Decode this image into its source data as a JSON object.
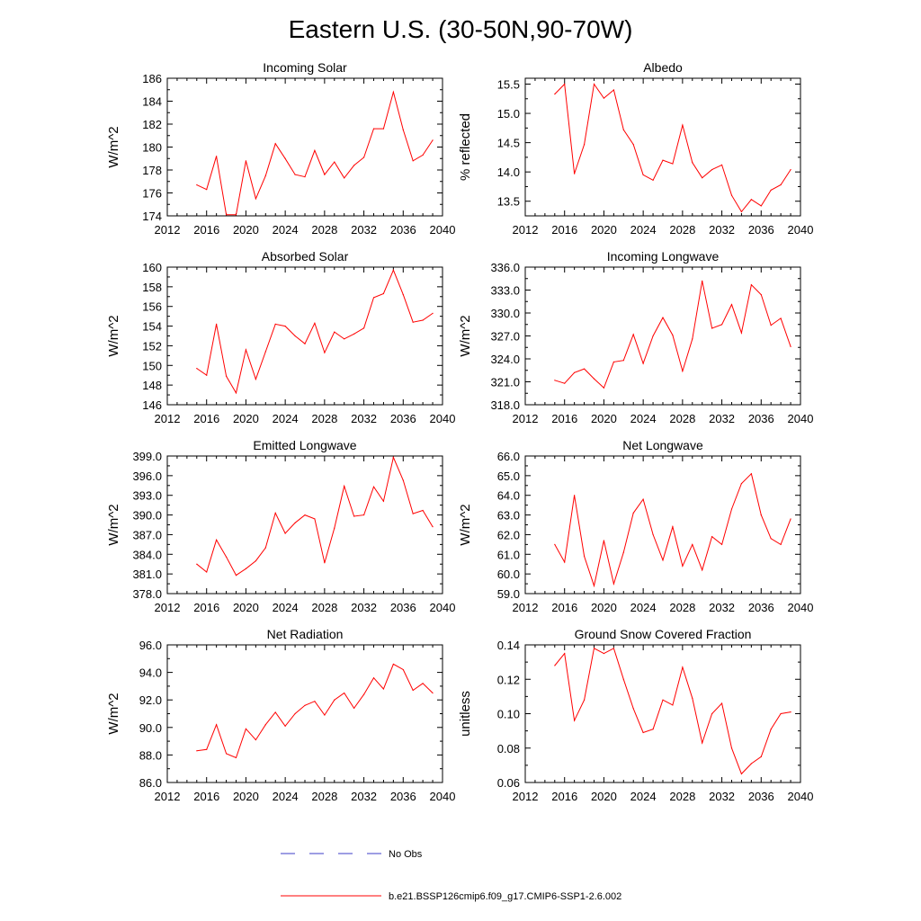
{
  "title": "Eastern U.S. (30-50N,90-70W)",
  "series_color": "#ff0000",
  "obs_color": "#3c3cc8",
  "legend": {
    "obs_label": "No Obs",
    "model_label": "b.e21.BSSP126cmip6.f09_g17.CMIP6-SSP1-2.6.002"
  },
  "chart_data": [
    {
      "type": "line",
      "title": "Incoming Solar",
      "ylabel": "W/m^2",
      "xlim": [
        2012,
        2040
      ],
      "ylim": [
        174,
        186
      ],
      "xticks": [
        "2012",
        "2016",
        "2020",
        "2024",
        "2028",
        "2032",
        "2036",
        "2040"
      ],
      "yticks": [
        "174",
        "176",
        "178",
        "180",
        "182",
        "184",
        "186"
      ],
      "x": [
        2015,
        2016,
        2017,
        2018,
        2019,
        2020,
        2021,
        2022,
        2023,
        2024,
        2025,
        2026,
        2027,
        2028,
        2029,
        2030,
        2031,
        2032,
        2033,
        2034,
        2035,
        2036,
        2037,
        2038,
        2039
      ],
      "values": [
        176.7,
        176.3,
        179.2,
        174.1,
        174.1,
        178.8,
        175.5,
        177.5,
        180.3,
        179.0,
        177.6,
        177.4,
        179.7,
        177.6,
        178.7,
        177.3,
        178.4,
        179.1,
        181.6,
        181.6,
        184.8,
        181.5,
        178.8,
        179.3,
        180.6
      ]
    },
    {
      "type": "line",
      "title": "Albedo",
      "ylabel": "% reflected",
      "xlim": [
        2012,
        2040
      ],
      "ylim": [
        13.25,
        15.6
      ],
      "xticks": [
        "2012",
        "2016",
        "2020",
        "2024",
        "2028",
        "2032",
        "2036",
        "2040"
      ],
      "yticks": [
        "13.5",
        "14.0",
        "14.5",
        "15.0",
        "15.5"
      ],
      "x": [
        2015,
        2016,
        2017,
        2018,
        2019,
        2020,
        2021,
        2022,
        2023,
        2024,
        2025,
        2026,
        2027,
        2028,
        2029,
        2030,
        2031,
        2032,
        2033,
        2034,
        2035,
        2036,
        2037,
        2038,
        2039
      ],
      "values": [
        15.33,
        15.5,
        13.97,
        14.47,
        15.5,
        15.26,
        15.4,
        14.72,
        14.47,
        13.95,
        13.86,
        14.2,
        14.14,
        14.8,
        14.16,
        13.9,
        14.04,
        14.12,
        13.6,
        13.32,
        13.53,
        13.42,
        13.69,
        13.78,
        14.04
      ]
    },
    {
      "type": "line",
      "title": "Absorbed Solar",
      "ylabel": "W/m^2",
      "xlim": [
        2012,
        2040
      ],
      "ylim": [
        146,
        160
      ],
      "xticks": [
        "2012",
        "2016",
        "2020",
        "2024",
        "2028",
        "2032",
        "2036",
        "2040"
      ],
      "yticks": [
        "146",
        "148",
        "150",
        "152",
        "154",
        "156",
        "158",
        "160"
      ],
      "x": [
        2015,
        2016,
        2017,
        2018,
        2019,
        2020,
        2021,
        2022,
        2023,
        2024,
        2025,
        2026,
        2027,
        2028,
        2029,
        2030,
        2031,
        2032,
        2033,
        2034,
        2035,
        2036,
        2037,
        2038,
        2039
      ],
      "values": [
        149.7,
        149.0,
        154.2,
        148.9,
        147.2,
        151.6,
        148.6,
        151.4,
        154.2,
        154.0,
        153.0,
        152.2,
        154.3,
        151.3,
        153.4,
        152.7,
        153.2,
        153.8,
        156.9,
        157.3,
        159.7,
        157.2,
        154.4,
        154.6,
        155.3
      ]
    },
    {
      "type": "line",
      "title": "Incoming Longwave",
      "ylabel": "W/m^2",
      "xlim": [
        2012,
        2040
      ],
      "ylim": [
        318,
        336
      ],
      "xticks": [
        "2012",
        "2016",
        "2020",
        "2024",
        "2028",
        "2032",
        "2036",
        "2040"
      ],
      "yticks": [
        "318.0",
        "321.0",
        "324.0",
        "327.0",
        "330.0",
        "333.0",
        "336.0"
      ],
      "x": [
        2015,
        2016,
        2017,
        2018,
        2019,
        2020,
        2021,
        2022,
        2023,
        2024,
        2025,
        2026,
        2027,
        2028,
        2029,
        2030,
        2031,
        2032,
        2033,
        2034,
        2035,
        2036,
        2037,
        2038,
        2039
      ],
      "values": [
        321.2,
        320.8,
        322.2,
        322.7,
        321.4,
        320.2,
        323.6,
        323.8,
        327.2,
        323.4,
        327.0,
        329.4,
        327.1,
        322.4,
        326.6,
        334.2,
        328.0,
        328.5,
        331.1,
        327.4,
        333.7,
        332.4,
        328.4,
        329.3,
        325.6
      ]
    },
    {
      "type": "line",
      "title": "Emitted Longwave",
      "ylabel": "W/m^2",
      "xlim": [
        2012,
        2040
      ],
      "ylim": [
        378,
        399
      ],
      "xticks": [
        "2012",
        "2016",
        "2020",
        "2024",
        "2028",
        "2032",
        "2036",
        "2040"
      ],
      "yticks": [
        "378.0",
        "381.0",
        "384.0",
        "387.0",
        "390.0",
        "393.0",
        "396.0",
        "399.0"
      ],
      "x": [
        2015,
        2016,
        2017,
        2018,
        2019,
        2020,
        2021,
        2022,
        2023,
        2024,
        2025,
        2026,
        2027,
        2028,
        2029,
        2030,
        2031,
        2032,
        2033,
        2034,
        2035,
        2036,
        2037,
        2038,
        2039
      ],
      "values": [
        382.5,
        381.3,
        386.2,
        383.6,
        380.8,
        381.8,
        383.0,
        385.0,
        390.3,
        387.2,
        388.8,
        390.0,
        389.4,
        382.7,
        388.0,
        394.4,
        389.8,
        390.0,
        394.3,
        392.1,
        398.8,
        395.3,
        390.2,
        390.7,
        388.2
      ]
    },
    {
      "type": "line",
      "title": "Net Longwave",
      "ylabel": "W/m^2",
      "xlim": [
        2012,
        2040
      ],
      "ylim": [
        59,
        66
      ],
      "xticks": [
        "2012",
        "2016",
        "2020",
        "2024",
        "2028",
        "2032",
        "2036",
        "2040"
      ],
      "yticks": [
        "59.0",
        "60.0",
        "61.0",
        "62.0",
        "63.0",
        "64.0",
        "65.0",
        "66.0"
      ],
      "x": [
        2015,
        2016,
        2017,
        2018,
        2019,
        2020,
        2021,
        2022,
        2023,
        2024,
        2025,
        2026,
        2027,
        2028,
        2029,
        2030,
        2031,
        2032,
        2033,
        2034,
        2035,
        2036,
        2037,
        2038,
        2039
      ],
      "values": [
        61.5,
        60.6,
        64.0,
        60.9,
        59.4,
        61.7,
        59.5,
        61.1,
        63.1,
        63.8,
        62.0,
        60.7,
        62.4,
        60.4,
        61.5,
        60.2,
        61.9,
        61.5,
        63.3,
        64.6,
        65.1,
        63.0,
        61.8,
        61.5,
        62.8
      ]
    },
    {
      "type": "line",
      "title": "Net Radiation",
      "ylabel": "W/m^2",
      "xlim": [
        2012,
        2040
      ],
      "ylim": [
        86,
        96
      ],
      "xticks": [
        "2012",
        "2016",
        "2020",
        "2024",
        "2028",
        "2032",
        "2036",
        "2040"
      ],
      "yticks": [
        "86.0",
        "88.0",
        "90.0",
        "92.0",
        "94.0",
        "96.0"
      ],
      "x": [
        2015,
        2016,
        2017,
        2018,
        2019,
        2020,
        2021,
        2022,
        2023,
        2024,
        2025,
        2026,
        2027,
        2028,
        2029,
        2030,
        2031,
        2032,
        2033,
        2034,
        2035,
        2036,
        2037,
        2038,
        2039
      ],
      "values": [
        88.3,
        88.4,
        90.2,
        88.1,
        87.8,
        89.9,
        89.1,
        90.2,
        91.1,
        90.1,
        91.0,
        91.6,
        91.9,
        90.9,
        92.0,
        92.5,
        91.4,
        92.4,
        93.6,
        92.8,
        94.6,
        94.2,
        92.7,
        93.2,
        92.5
      ]
    },
    {
      "type": "line",
      "title": "Ground Snow Covered Fraction",
      "ylabel": "unitless",
      "xlim": [
        2012,
        2040
      ],
      "ylim": [
        0.06,
        0.14
      ],
      "xticks": [
        "2012",
        "2016",
        "2020",
        "2024",
        "2028",
        "2032",
        "2036",
        "2040"
      ],
      "yticks": [
        "0.06",
        "0.08",
        "0.10",
        "0.12",
        "0.14"
      ],
      "x": [
        2015,
        2016,
        2017,
        2018,
        2019,
        2020,
        2021,
        2022,
        2023,
        2024,
        2025,
        2026,
        2027,
        2028,
        2029,
        2030,
        2031,
        2032,
        2033,
        2034,
        2035,
        2036,
        2037,
        2038,
        2039
      ],
      "values": [
        0.128,
        0.135,
        0.096,
        0.108,
        0.138,
        0.135,
        0.138,
        0.12,
        0.103,
        0.089,
        0.091,
        0.108,
        0.105,
        0.127,
        0.109,
        0.083,
        0.1,
        0.106,
        0.08,
        0.065,
        0.071,
        0.075,
        0.091,
        0.1,
        0.101
      ]
    }
  ]
}
